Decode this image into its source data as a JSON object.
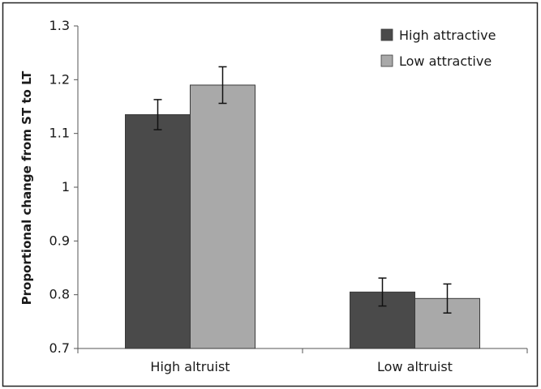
{
  "chart_data": {
    "type": "bar",
    "title": "",
    "xlabel": "",
    "ylabel": "Proportional change from ST to LT",
    "ylim": [
      0.7,
      1.3
    ],
    "yticks": [
      0.7,
      0.8,
      0.9,
      1,
      1.1,
      1.2,
      1.3
    ],
    "ytick_labels": [
      "0.7",
      "0.8",
      "0.9",
      "1",
      "1.1",
      "1.2",
      "1.3"
    ],
    "categories": [
      "High altruist",
      "Low altruist"
    ],
    "series": [
      {
        "name": "High attractive",
        "values": [
          1.135,
          0.805
        ],
        "errors": [
          0.028,
          0.026
        ],
        "color": "#4a4a4a"
      },
      {
        "name": "Low attractive",
        "values": [
          1.19,
          0.793
        ],
        "errors": [
          0.034,
          0.027
        ],
        "color": "#a9a9a9"
      }
    ],
    "legend_position": "top-right",
    "grid": false,
    "error_bars": true
  }
}
